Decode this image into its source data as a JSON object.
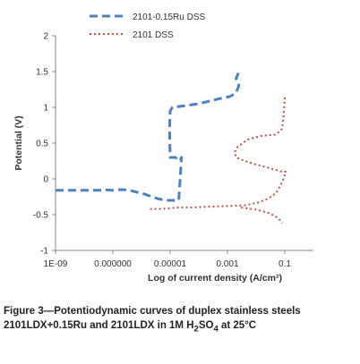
{
  "chart_data": {
    "type": "line",
    "title": "",
    "xlabel": "Log of current density (A/cm²)",
    "ylabel": "Potential (V)",
    "x_scale": "log",
    "xlim": [
      1e-09,
      1
    ],
    "ylim": [
      -1,
      2
    ],
    "x_ticks": [
      {
        "value": 1e-09,
        "label": "1E-09"
      },
      {
        "value": 1e-07,
        "label": "0.000000"
      },
      {
        "value": 1e-05,
        "label": "0.00001"
      },
      {
        "value": 0.001,
        "label": "0.001"
      },
      {
        "value": 0.1,
        "label": "0.1"
      }
    ],
    "y_ticks": [
      {
        "value": -1,
        "label": "-1"
      },
      {
        "value": -0.5,
        "label": "-0.5"
      },
      {
        "value": 0,
        "label": "0"
      },
      {
        "value": 0.5,
        "label": "0.5"
      },
      {
        "value": 1,
        "label": "1"
      },
      {
        "value": 1.5,
        "label": "1.5"
      },
      {
        "value": 2,
        "label": "2"
      }
    ],
    "grid": false,
    "legend": "top",
    "series": [
      {
        "name": "2101-0.15Ru DSS",
        "color": "#4f81bd",
        "style": "dashed",
        "x": [
          1e-09,
          1e-08,
          3e-08,
          6e-08,
          1e-07,
          2e-07,
          4e-07,
          6e-07,
          1e-06,
          2e-06,
          4e-06,
          7e-06,
          1.2e-05,
          2e-05,
          2.5e-05,
          2.2e-05,
          1.5e-05,
          1e-05,
          9.5e-06,
          1e-05,
          1.2e-05,
          3e-05,
          0.0001,
          0.0005,
          0.0012,
          0.002,
          0.0025,
          0.0024,
          0.002,
          0.0024
        ],
        "y": [
          -0.16,
          -0.16,
          -0.16,
          -0.155,
          -0.16,
          -0.15,
          -0.16,
          -0.18,
          -0.2,
          -0.24,
          -0.28,
          -0.3,
          -0.3,
          -0.3,
          0.3,
          0.25,
          0.3,
          0.3,
          0.7,
          0.95,
          1.0,
          1.02,
          1.05,
          1.12,
          1.15,
          1.2,
          1.3,
          1.35,
          1.4,
          1.48
        ]
      },
      {
        "name": "2101 DSS",
        "color": "#c0504d",
        "style": "dotted",
        "x": [
          2e-06,
          5e-06,
          1e-05,
          2e-05,
          5e-05,
          0.0002,
          0.001,
          0.004,
          0.012,
          0.025,
          0.05,
          0.08,
          0.1,
          0.11,
          0.1,
          0.08,
          0.03,
          0.01,
          0.004,
          0.002,
          0.0018,
          0.0023,
          0.005,
          0.015,
          0.05,
          0.08,
          0.09,
          0.095,
          0.1
        ],
        "y": [
          -0.42,
          -0.42,
          -0.41,
          -0.4,
          -0.4,
          -0.39,
          -0.38,
          -0.37,
          -0.33,
          -0.28,
          -0.2,
          -0.05,
          0.05,
          0.1,
          0.1,
          0.1,
          0.15,
          0.2,
          0.25,
          0.3,
          0.38,
          0.45,
          0.55,
          0.6,
          0.62,
          0.7,
          0.85,
          1.0,
          1.15
        ]
      },
      {
        "name": "2101 DSS",
        "color": "#c0504d",
        "style": "dotted",
        "x": [
          0.003,
          0.01,
          0.03,
          0.06,
          0.08
        ],
        "y": [
          -0.4,
          -0.43,
          -0.48,
          -0.55,
          -0.62
        ]
      }
    ]
  },
  "caption": {
    "line1": "Figure 3—Potentiodynamic curves of duplex stainless steels",
    "line2_prefix": "2101LDX+0.15Ru and 2101LDX in 1M H",
    "line2_sub1": "2",
    "line2_mid": "SO",
    "line2_sub2": "4",
    "line2_suffix": " at 25°C"
  }
}
